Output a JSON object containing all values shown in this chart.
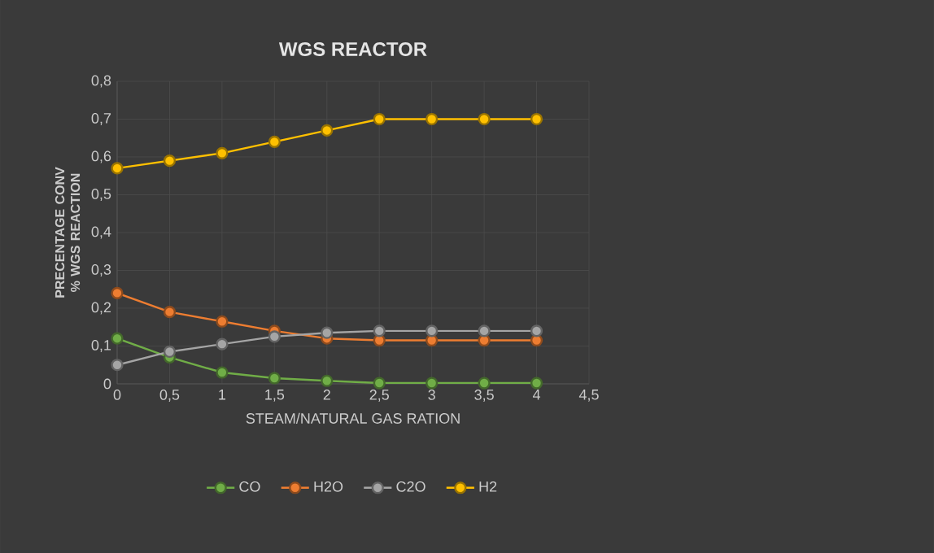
{
  "chart_data": {
    "type": "line",
    "title": "WGS REACTOR",
    "xlabel": "STEAM/NATURAL GAS RATION",
    "ylabel": "PRECENTAGE CONV % WGS REACTION",
    "x": [
      0,
      0.5,
      1,
      1.5,
      2,
      2.5,
      3,
      3.5,
      4
    ],
    "series": [
      {
        "name": "CO",
        "color": "#70ad47",
        "values": [
          0.12,
          0.07,
          0.03,
          0.015,
          0.008,
          0.002,
          0.002,
          0.002,
          0.002
        ]
      },
      {
        "name": "H2O",
        "color": "#ed7d31",
        "values": [
          0.24,
          0.19,
          0.165,
          0.14,
          0.12,
          0.115,
          0.115,
          0.115,
          0.115
        ]
      },
      {
        "name": "C2O",
        "color": "#a5a5a5",
        "values": [
          0.05,
          0.085,
          0.105,
          0.125,
          0.135,
          0.14,
          0.14,
          0.14,
          0.14
        ]
      },
      {
        "name": "H2",
        "color": "#ffc000",
        "values": [
          0.57,
          0.59,
          0.61,
          0.64,
          0.67,
          0.7,
          0.7,
          0.7,
          0.7
        ]
      }
    ],
    "xlim": [
      0,
      4.5
    ],
    "xticks": [
      {
        "value": 0,
        "label": "0"
      },
      {
        "value": 0.5,
        "label": "0,5"
      },
      {
        "value": 1,
        "label": "1"
      },
      {
        "value": 1.5,
        "label": "1,5"
      },
      {
        "value": 2,
        "label": "2"
      },
      {
        "value": 2.5,
        "label": "2,5"
      },
      {
        "value": 3,
        "label": "3"
      },
      {
        "value": 3.5,
        "label": "3,5"
      },
      {
        "value": 4,
        "label": "4"
      },
      {
        "value": 4.5,
        "label": "4,5"
      }
    ],
    "ylim": [
      0,
      0.8
    ],
    "yticks": [
      {
        "value": 0,
        "label": "0"
      },
      {
        "value": 0.1,
        "label": "0,1"
      },
      {
        "value": 0.2,
        "label": "0,2"
      },
      {
        "value": 0.3,
        "label": "0,3"
      },
      {
        "value": 0.4,
        "label": "0,4"
      },
      {
        "value": 0.5,
        "label": "0,5"
      },
      {
        "value": 0.6,
        "label": "0,6"
      },
      {
        "value": 0.7,
        "label": "0,7"
      },
      {
        "value": 0.8,
        "label": "0,8"
      }
    ],
    "grid": true,
    "legend": "bottom",
    "marker": "circle",
    "line_style": "solid"
  }
}
